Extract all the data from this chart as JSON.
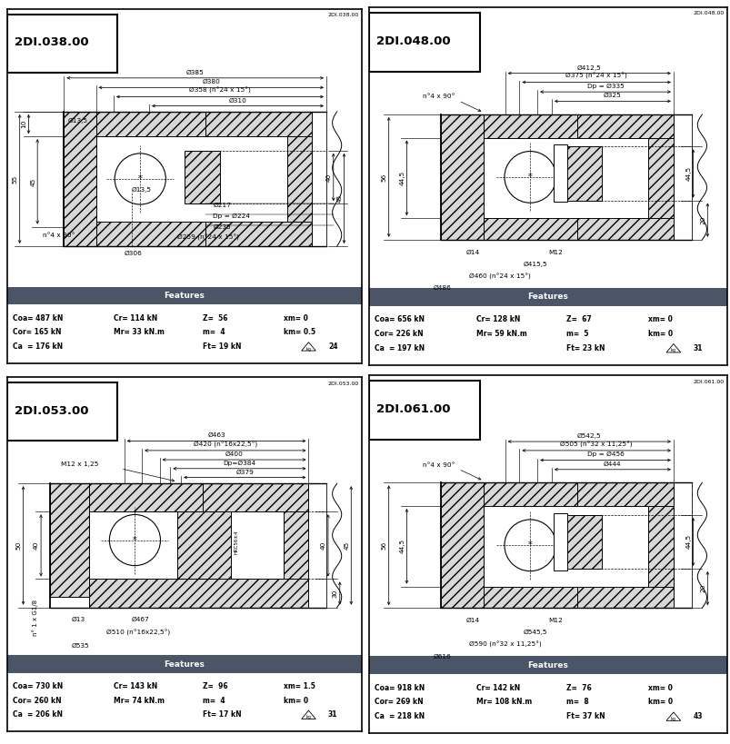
{
  "panels": [
    {
      "id": "2DI.038.00",
      "features": {
        "Coa": "487 kN",
        "Cr": "114 kN",
        "Z": "56",
        "xm": "0",
        "Cor": "165 kN",
        "Mr": "33 kN.m",
        "m": "4",
        "km": "0.5",
        "Ca": "176 kN",
        "Ft": "19 kN",
        "weight": "24"
      }
    },
    {
      "id": "2DI.048.00",
      "features": {
        "Coa": "656 kN",
        "Cr": "128 kN",
        "Z": "67",
        "xm": "0",
        "Cor": "226 kN",
        "Mr": "59 kN.m",
        "m": "5",
        "km": "0",
        "Ca": "197 kN",
        "Ft": "23 kN",
        "weight": "31"
      }
    },
    {
      "id": "2DI.053.00",
      "features": {
        "Coa": "730 kN",
        "Cr": "143 kN",
        "Z": "96",
        "xm": "1.5",
        "Cor": "260 kN",
        "Mr": "74 kN.m",
        "m": "4",
        "km": "0",
        "Ca": "206 kN",
        "Ft": "17 kN",
        "weight": "31"
      }
    },
    {
      "id": "2DI.061.00",
      "features": {
        "Coa": "918 kN",
        "Cr": "142 kN",
        "Z": "76",
        "xm": "0",
        "Cor": "269 kN",
        "Mr": "108 kN.m",
        "m": "8",
        "km": "0",
        "Ca": "218 kN",
        "Ft": "37 kN",
        "weight": "43"
      }
    }
  ],
  "header_color": "#4a5568",
  "header_text_color": "#ffffff"
}
